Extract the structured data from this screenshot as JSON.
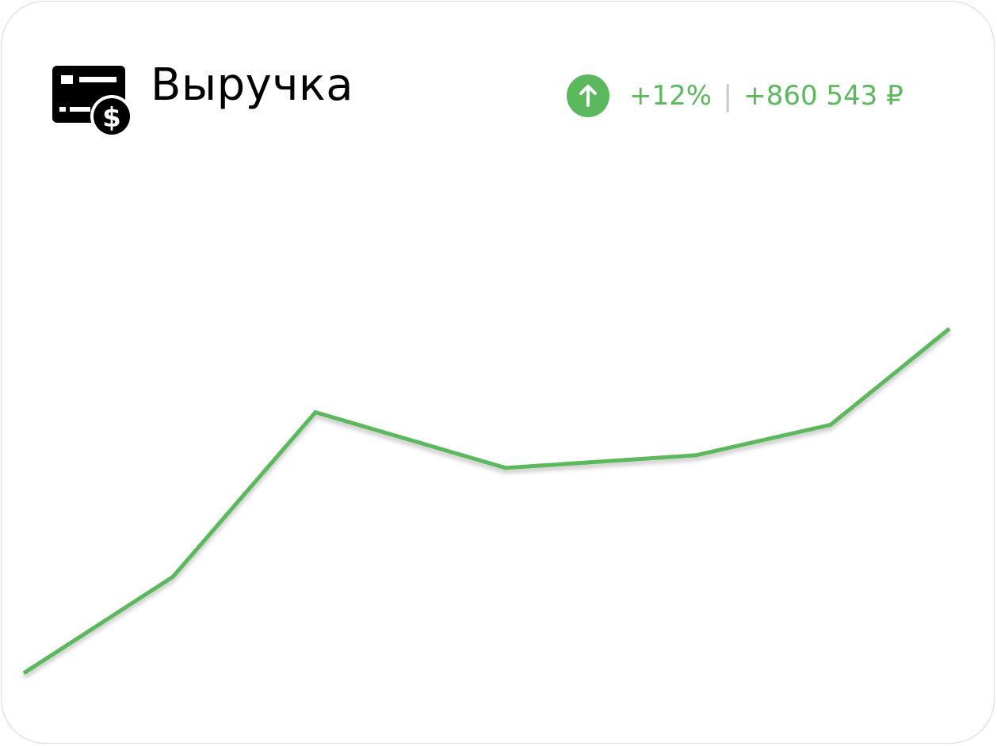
{
  "widget": {
    "title": "Выручка",
    "icon": "revenue-card-dollar-icon",
    "trend": {
      "icon": "arrow-up-circle-icon",
      "percent": "+12%",
      "separator": "|",
      "absolute": "+860 543 ₽"
    }
  },
  "colors": {
    "accent": "#5cb85c",
    "line": "#5cb85c",
    "separator": "#c8c8c8",
    "border": "#d9d9d9"
  },
  "chart_data": {
    "type": "line",
    "title": "",
    "xlabel": "",
    "ylabel": "",
    "grid": false,
    "legend": "none",
    "x": [
      0,
      1,
      2,
      3,
      4,
      5,
      6
    ],
    "series": [
      {
        "values": [
          0,
          38,
          103,
          81,
          86,
          98,
          136
        ]
      }
    ],
    "ylim": [
      0,
      136
    ]
  }
}
